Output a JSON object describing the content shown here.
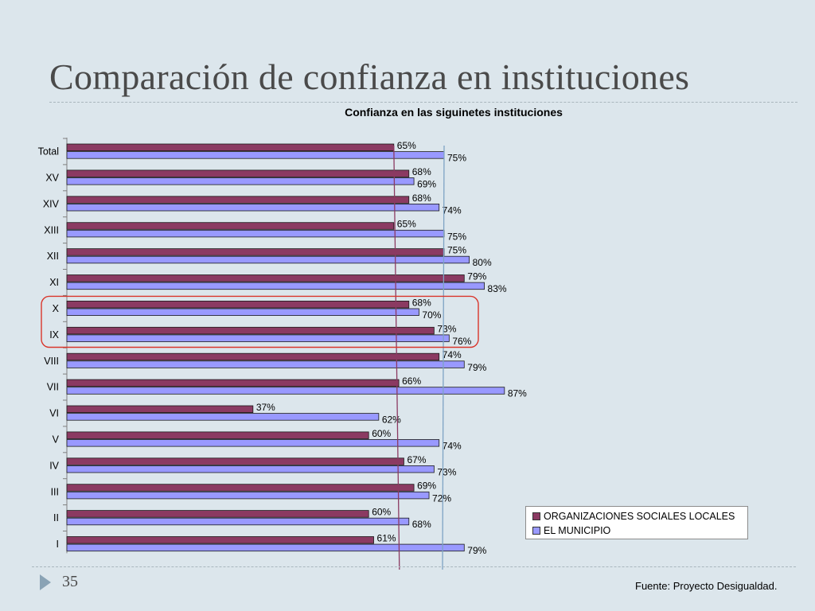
{
  "slide": {
    "title": "Comparación de confianza en instituciones",
    "page_number": "35",
    "source": "Fuente: Proyecto Desigualdad."
  },
  "colors": {
    "series1": "#8b3a62",
    "series2": "#9999ff",
    "avg_line1": "#8b3a62",
    "avg_line2": "#7ea3c4",
    "highlight": "#d9352b"
  },
  "chart_data": {
    "type": "bar",
    "orientation": "horizontal",
    "title": "Confianza en las siguinetes instituciones",
    "categories": [
      "Total",
      "XV",
      "XIV",
      "XIII",
      "XII",
      "XI",
      "X",
      "IX",
      "VIII",
      "VII",
      "VI",
      "V",
      "IV",
      "III",
      "II",
      "I"
    ],
    "series": [
      {
        "name": "ORGANIZACIONES SOCIALES LOCALES",
        "values": [
          65,
          68,
          68,
          65,
          75,
          79,
          68,
          73,
          74,
          66,
          37,
          60,
          67,
          69,
          60,
          61
        ],
        "labels": [
          "65%",
          "68%",
          "68%",
          "65%",
          "75%",
          "79%",
          "68%",
          "73%",
          "74%",
          "66%",
          "37%",
          "60%",
          "67%",
          "69%",
          "60%",
          "61%"
        ]
      },
      {
        "name": "EL MUNICIPIO",
        "values": [
          75,
          69,
          74,
          75,
          80,
          83,
          70,
          76,
          79,
          87,
          62,
          74,
          73,
          72,
          68,
          79
        ],
        "labels": [
          "75%",
          "69%",
          "74%",
          "75%",
          "80%",
          "83%",
          "70%",
          "76%",
          "79%",
          "87%",
          "62%",
          "74%",
          "73%",
          "72%",
          "68%",
          "79%"
        ]
      }
    ],
    "reference_lines": [
      {
        "series": "ORGANIZACIONES SOCIALES LOCALES",
        "value": 65
      },
      {
        "series": "EL MUNICIPIO",
        "value": 75
      }
    ],
    "highlighted_categories": [
      "X",
      "IX"
    ],
    "xlim": [
      0,
      100
    ],
    "grid": false,
    "legend_position": "bottom-right"
  }
}
